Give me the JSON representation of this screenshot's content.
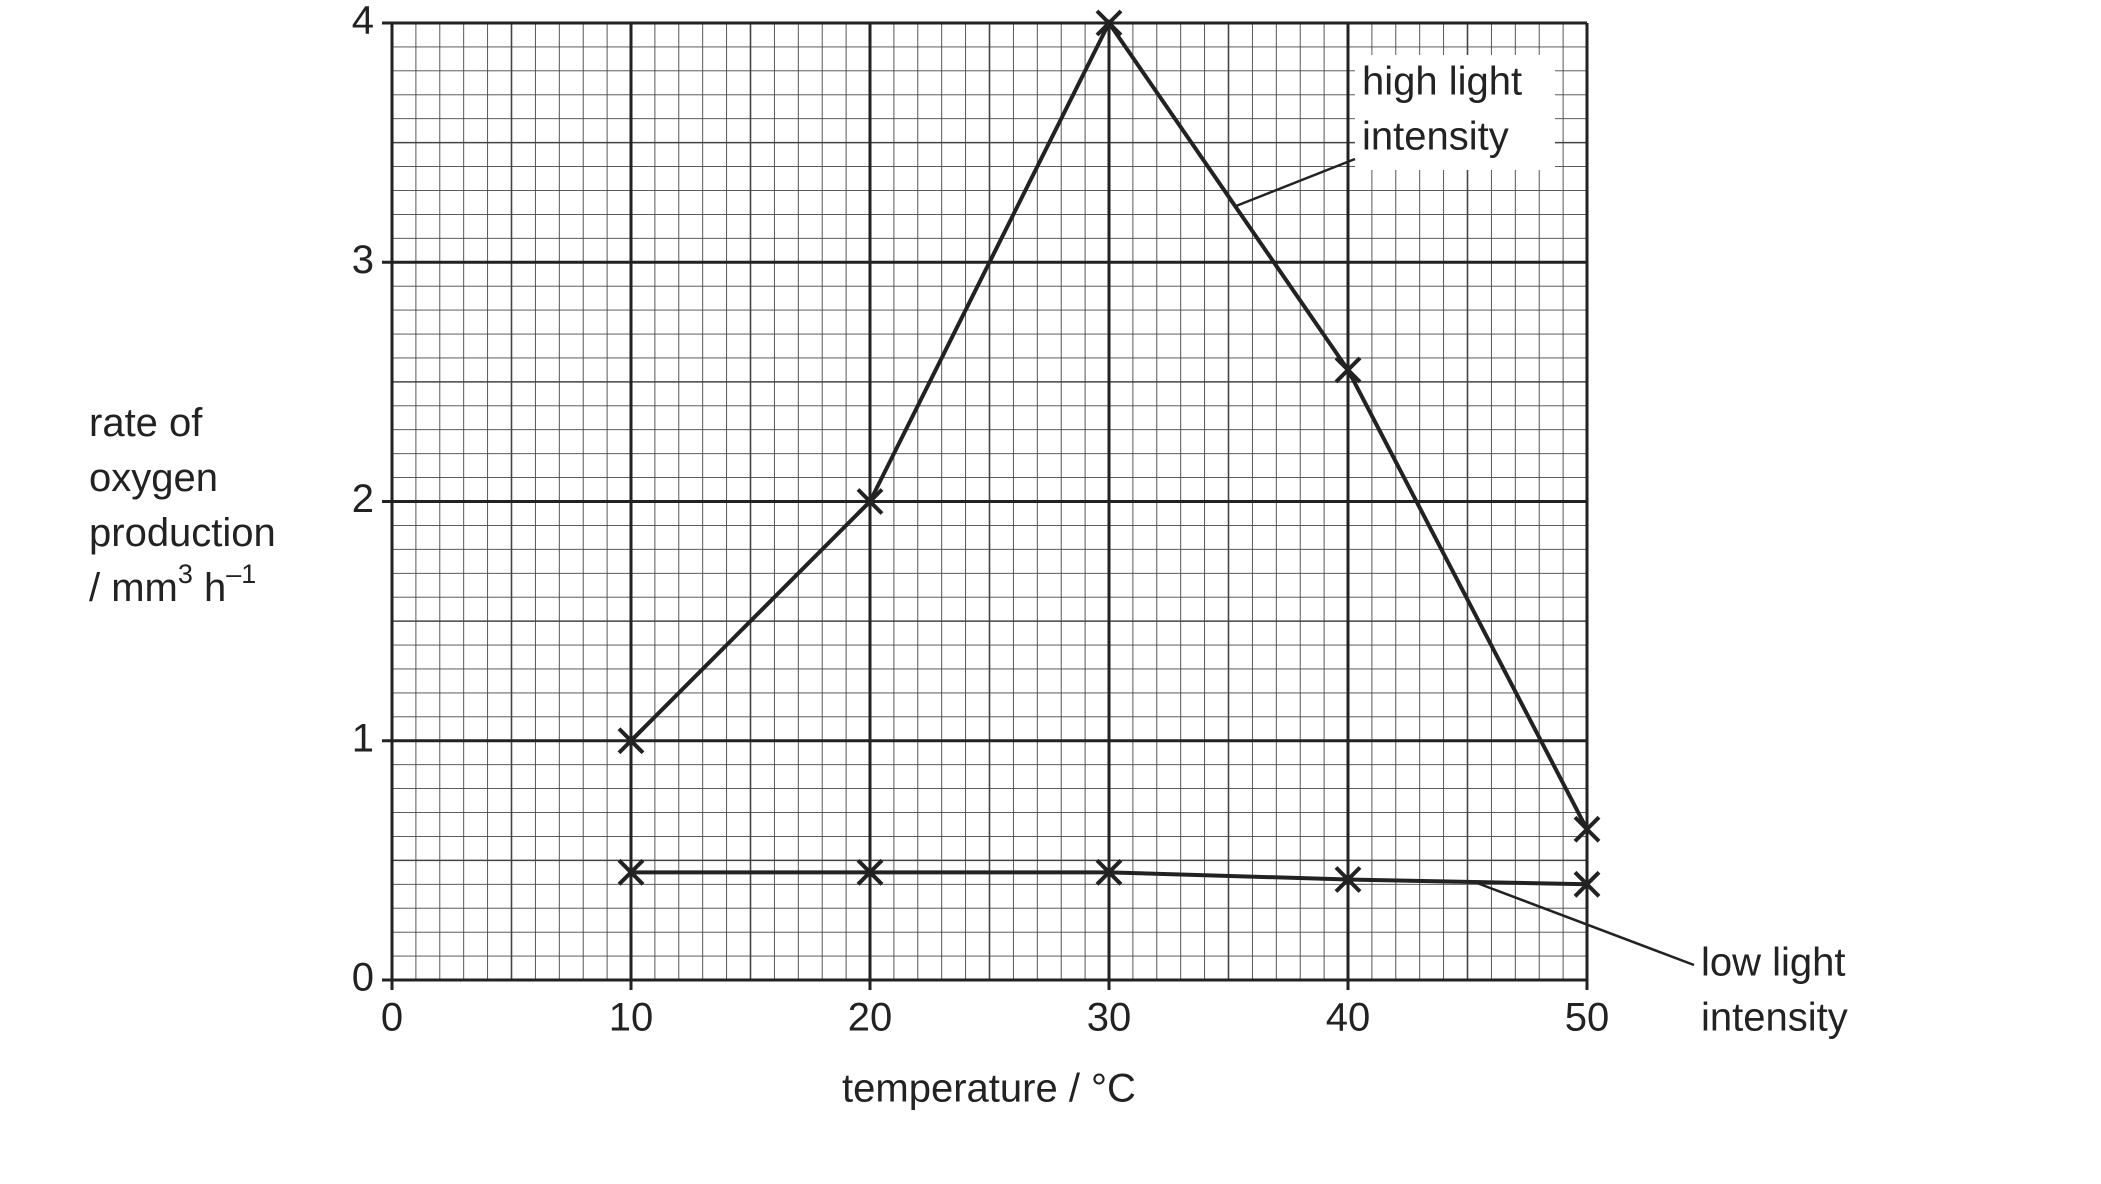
{
  "chart_data": {
    "type": "line",
    "xlabel": "temperature / °C",
    "ylabel_lines": [
      "rate of",
      "oxygen",
      "production"
    ],
    "ylabel_unit": [
      "/ mm",
      "3",
      " h",
      "–1"
    ],
    "x": [
      10,
      20,
      30,
      40,
      50
    ],
    "series": [
      {
        "name_lines": [
          "high light",
          "intensity"
        ],
        "color": "#222222",
        "values": [
          1,
          2,
          4,
          2.55,
          0.63
        ]
      },
      {
        "name_lines": [
          "low light",
          "intensity"
        ],
        "color": "#222222",
        "values": [
          0.45,
          0.45,
          0.45,
          0.42,
          0.4
        ]
      }
    ],
    "xlim": [
      0,
      50
    ],
    "xticks": [
      0,
      10,
      20,
      30,
      40,
      50
    ],
    "ylim": [
      0,
      4
    ],
    "yticks": [
      0,
      1,
      2,
      3,
      4
    ],
    "grid": true
  }
}
